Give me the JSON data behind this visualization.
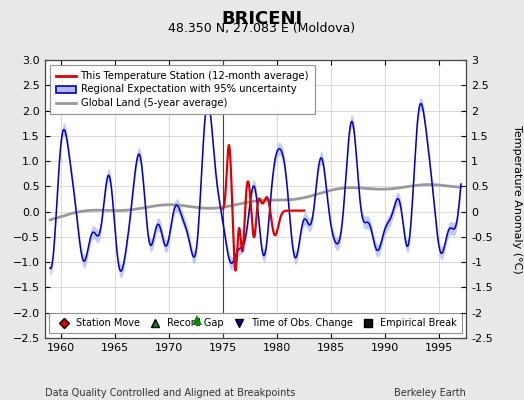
{
  "title": "BRICENI",
  "subtitle": "48.350 N, 27.083 E (Moldova)",
  "ylabel": "Temperature Anomaly (°C)",
  "xlabel_bottom": "Data Quality Controlled and Aligned at Breakpoints",
  "xlabel_right": "Berkeley Earth",
  "xlim": [
    1958.5,
    1997.5
  ],
  "ylim": [
    -2.5,
    3.0
  ],
  "yticks": [
    -2.5,
    -2,
    -1.5,
    -1,
    -0.5,
    0,
    0.5,
    1,
    1.5,
    2,
    2.5,
    3
  ],
  "xticks": [
    1960,
    1965,
    1970,
    1975,
    1980,
    1985,
    1990,
    1995
  ],
  "background_color": "#e8e8e8",
  "plot_bg_color": "#ffffff",
  "grid_color": "#cccccc",
  "red_line_color": "#dd0000",
  "blue_line_color": "#0000bb",
  "blue_fill_color": "#b0b8ff",
  "gray_line_color": "#999999",
  "vertical_line_x": 1975.0,
  "record_gap_x": 1972.6,
  "record_gap_y": -2.15
}
